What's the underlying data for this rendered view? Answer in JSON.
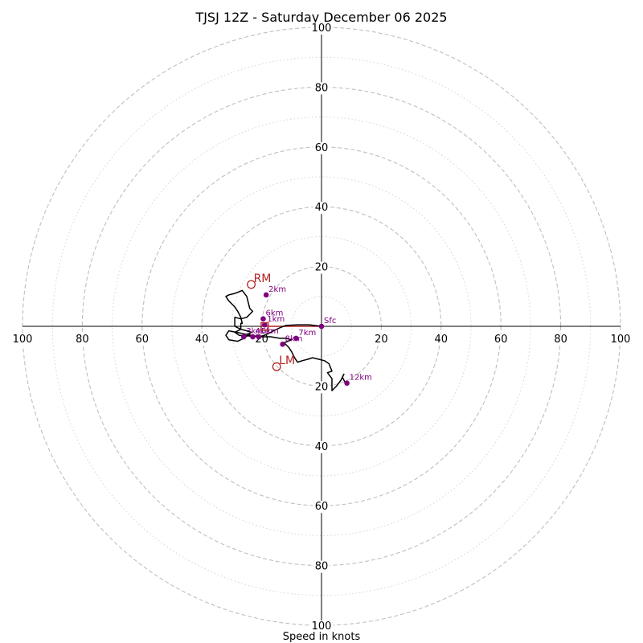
{
  "chart_data": {
    "type": "hodograph",
    "title": "TJSJ 12Z - Saturday December 06 2025",
    "xlabel": "Speed in knots",
    "units": "knots",
    "max_speed": 100,
    "major_rings": [
      20,
      40,
      60,
      80,
      100
    ],
    "minor_rings": [
      10,
      30,
      50,
      70,
      90
    ],
    "tick_labels": {
      "top": [
        "20",
        "40",
        "60",
        "80",
        "100"
      ],
      "bottom": [
        "20",
        "40",
        "60",
        "80",
        "100"
      ],
      "left": [
        "20",
        "40",
        "60",
        "80",
        "100"
      ],
      "right": [
        "20",
        "40",
        "60",
        "80",
        "100"
      ]
    },
    "trace": [
      [
        0,
        0
      ],
      [
        -4,
        0.5
      ],
      [
        -8,
        0.5
      ],
      [
        -12,
        0.3
      ],
      [
        -14,
        -0.5
      ],
      [
        -16,
        -1.5
      ],
      [
        -19,
        -3
      ],
      [
        -21,
        -3.5
      ],
      [
        -23,
        -3.3
      ],
      [
        -25,
        -3.2
      ],
      [
        -27.5,
        -3
      ],
      [
        -29,
        -2
      ],
      [
        -27,
        -1
      ],
      [
        -27,
        1
      ],
      [
        -26.5,
        1
      ],
      [
        -27,
        3
      ],
      [
        -28,
        5
      ],
      [
        -29,
        6.5
      ],
      [
        -30,
        7.5
      ],
      [
        -30.5,
        8
      ],
      [
        -31,
        8.5
      ],
      [
        -32,
        10
      ],
      [
        -31,
        10.5
      ],
      [
        -29,
        11
      ],
      [
        -26.5,
        12
      ],
      [
        -25,
        10
      ],
      [
        -24,
        6
      ],
      [
        -23,
        5
      ],
      [
        -24,
        4
      ],
      [
        -25,
        3
      ],
      [
        -27,
        2.5
      ],
      [
        -29,
        3
      ],
      [
        -29,
        0
      ],
      [
        -27,
        -1
      ],
      [
        -25,
        -1.5
      ],
      [
        -23.5,
        -2
      ],
      [
        -26,
        -4
      ],
      [
        -28,
        -5
      ],
      [
        -31,
        -4.5
      ],
      [
        -32,
        -3
      ],
      [
        -31,
        -1.5
      ],
      [
        -28.5,
        -2
      ],
      [
        -26,
        -2.5
      ],
      [
        -21,
        -3.5
      ],
      [
        -17,
        -3.5
      ],
      [
        -14,
        -4
      ],
      [
        -12,
        -4
      ],
      [
        -10,
        -4.5
      ],
      [
        -12.5,
        -5.5
      ],
      [
        -11,
        -7
      ],
      [
        -10,
        -8.5
      ],
      [
        -9,
        -10.5
      ],
      [
        -8,
        -12
      ],
      [
        -6.5,
        -11.5
      ],
      [
        -4.5,
        -11
      ],
      [
        -3,
        -10.5
      ],
      [
        -1,
        -11
      ],
      [
        1,
        -11.5
      ],
      [
        2.5,
        -12.5
      ],
      [
        3.5,
        -15
      ],
      [
        2,
        -15.5
      ],
      [
        3.5,
        -17.5
      ],
      [
        3.5,
        -21.5
      ],
      [
        5,
        -20
      ],
      [
        6.5,
        -18
      ],
      [
        7.5,
        -16
      ],
      [
        7,
        -17
      ],
      [
        8,
        -19
      ],
      [
        8.5,
        -19
      ]
    ],
    "height_markers": [
      {
        "label": "Sfc",
        "u": 0,
        "v": 0
      },
      {
        "label": "1km",
        "u": -19,
        "v": 0.5
      },
      {
        "label": "2km",
        "u": -18.5,
        "v": 10.5
      },
      {
        "label": "3km",
        "u": -26,
        "v": -3.5
      },
      {
        "label": "4km",
        "u": -23,
        "v": -3.5
      },
      {
        "label": "5km",
        "u": -21,
        "v": -3.5
      },
      {
        "label": "6km",
        "u": -19.5,
        "v": 2.5
      },
      {
        "label": "7km",
        "u": -8.5,
        "v": -4
      },
      {
        "label": "8km",
        "u": -13,
        "v": -6
      },
      {
        "label": "12km",
        "u": 8.5,
        "v": -19
      }
    ],
    "storm_motion": [
      {
        "label": "RM",
        "u": -23.5,
        "v": 14
      },
      {
        "label": "LM",
        "u": -15,
        "v": -13.5
      },
      {
        "label": "",
        "u": -19,
        "v": 0
      }
    ],
    "shear_vector": {
      "from": [
        0,
        0
      ],
      "to": [
        -19,
        0
      ]
    },
    "colors": {
      "trace": "#000000",
      "marker": "#800080",
      "storm_motion": "#b22222",
      "shear_vector": "#b22222"
    }
  }
}
